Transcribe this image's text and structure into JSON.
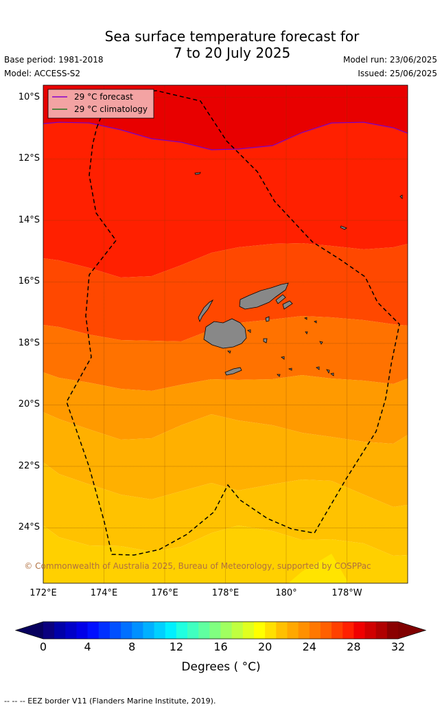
{
  "title": {
    "line1": "Sea surface temperature forecast for",
    "line2": "7 to 20 July 2025"
  },
  "meta": {
    "base_period": "Base period: 1981-2018",
    "model": "Model: ACCESS-S2",
    "model_run": "Model run: 23/06/2025",
    "issued": "Issued: 25/06/2025"
  },
  "map": {
    "lon_range": [
      172,
      184
    ],
    "lat_range": [
      -25.8,
      -9.6
    ],
    "lat_ticks": [
      {
        "value": -10,
        "label": "10°S"
      },
      {
        "value": -12,
        "label": "12°S"
      },
      {
        "value": -14,
        "label": "14°S"
      },
      {
        "value": -16,
        "label": "16°S"
      },
      {
        "value": -18,
        "label": "18°S"
      },
      {
        "value": -20,
        "label": "20°S"
      },
      {
        "value": -22,
        "label": "22°S"
      },
      {
        "value": -24,
        "label": "24°S"
      }
    ],
    "lon_ticks": [
      {
        "value": 172,
        "label": "172°E"
      },
      {
        "value": 174,
        "label": "174°E"
      },
      {
        "value": 176,
        "label": "176°E"
      },
      {
        "value": 178,
        "label": "178°E"
      },
      {
        "value": 180,
        "label": "180°"
      },
      {
        "value": 182,
        "label": "178°W"
      }
    ],
    "grid": true,
    "legend": {
      "placement": "top-left",
      "items": [
        {
          "label": "29 °C  forecast",
          "color": "#8800cc"
        },
        {
          "label": "29 °C  climatology",
          "color": "#227722"
        }
      ]
    },
    "copyright": "© Commonwealth of Australia 2025, Bureau of Meteorology, supported by COSPPac",
    "colors": {
      "land": "#888888",
      "c24": "#ffd000",
      "c25": "#ffb000",
      "c26": "#ff9a00",
      "c27": "#ff7200",
      "c28": "#ff4800",
      "c29": "#ff2000",
      "c30": "#e80000"
    }
  },
  "colorbar": {
    "min": 0,
    "max": 32,
    "step": 1,
    "ticks": [
      "0",
      "4",
      "8",
      "12",
      "16",
      "20",
      "24",
      "28",
      "32"
    ],
    "label": "Degrees ( °C)",
    "colors": [
      "#0a007f",
      "#0000a8",
      "#0000c8",
      "#0000e8",
      "#0010ff",
      "#0030ff",
      "#0050ff",
      "#0070ff",
      "#0090ff",
      "#00b0ff",
      "#00d0ff",
      "#00f0ff",
      "#20ffe0",
      "#40ffc0",
      "#60ffa0",
      "#80ff80",
      "#a0ff60",
      "#c0ff40",
      "#e0ff20",
      "#ffff00",
      "#ffe000",
      "#ffc000",
      "#ffa800",
      "#ff9000",
      "#ff7800",
      "#ff6000",
      "#ff4000",
      "#ff2000",
      "#f00000",
      "#d00000",
      "#b00000",
      "#8a0000"
    ],
    "under_color": "#07005e",
    "over_color": "#800000"
  },
  "footnote": "--  --  -- EEZ border V11 (Flanders Marine Institute, 2019)."
}
